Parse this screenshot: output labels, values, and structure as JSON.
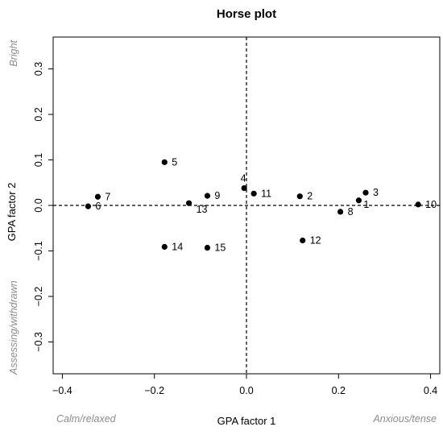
{
  "chart_data": {
    "type": "scatter",
    "title": "Horse plot",
    "xlabel": "GPA factor 1",
    "ylabel": "GPA factor 2",
    "xlim": [
      -0.42,
      0.42
    ],
    "ylim": [
      -0.37,
      0.37
    ],
    "xticks": [
      -0.4,
      -0.2,
      0.0,
      0.2,
      0.4
    ],
    "xtick_labels": [
      "−0.4",
      "−0.2",
      "0.0",
      "0.2",
      "0.4"
    ],
    "yticks": [
      -0.3,
      -0.2,
      -0.1,
      0.0,
      0.1,
      0.2,
      0.3
    ],
    "ytick_labels": [
      "−0.3",
      "−0.2",
      "−0.1",
      "0.0",
      "0.1",
      "0.2",
      "0.3"
    ],
    "reference_lines": {
      "x": 0,
      "y": 0,
      "style": "dashed"
    },
    "grid": false,
    "color": "#000000",
    "annotations": {
      "x_low": "Calm/relaxed",
      "x_high": "Anxious/tense",
      "y_high": "Bright",
      "y_low": "Assessing/withdrawn"
    },
    "points": [
      {
        "label": "1",
        "x": 0.244,
        "y": 0.011,
        "label_pos": "right-low"
      },
      {
        "label": "2",
        "x": 0.116,
        "y": 0.02,
        "label_pos": "right"
      },
      {
        "label": "3",
        "x": 0.259,
        "y": 0.028,
        "label_pos": "right"
      },
      {
        "label": "4",
        "x": -0.005,
        "y": 0.038,
        "label_pos": "above-left"
      },
      {
        "label": "5",
        "x": -0.178,
        "y": 0.095,
        "label_pos": "right"
      },
      {
        "label": "6",
        "x": -0.344,
        "y": -0.002,
        "label_pos": "right"
      },
      {
        "label": "7",
        "x": -0.323,
        "y": 0.019,
        "label_pos": "right"
      },
      {
        "label": "8",
        "x": 0.204,
        "y": -0.014,
        "label_pos": "right"
      },
      {
        "label": "9",
        "x": -0.085,
        "y": 0.021,
        "label_pos": "right"
      },
      {
        "label": "10",
        "x": 0.373,
        "y": 0.002,
        "label_pos": "right"
      },
      {
        "label": "11",
        "x": 0.016,
        "y": 0.026,
        "label_pos": "right"
      },
      {
        "label": "12",
        "x": 0.122,
        "y": -0.077,
        "label_pos": "right"
      },
      {
        "label": "13",
        "x": -0.125,
        "y": 0.005,
        "label_pos": "below-right"
      },
      {
        "label": "14",
        "x": -0.178,
        "y": -0.091,
        "label_pos": "right"
      },
      {
        "label": "15",
        "x": -0.085,
        "y": -0.093,
        "label_pos": "right"
      }
    ]
  }
}
